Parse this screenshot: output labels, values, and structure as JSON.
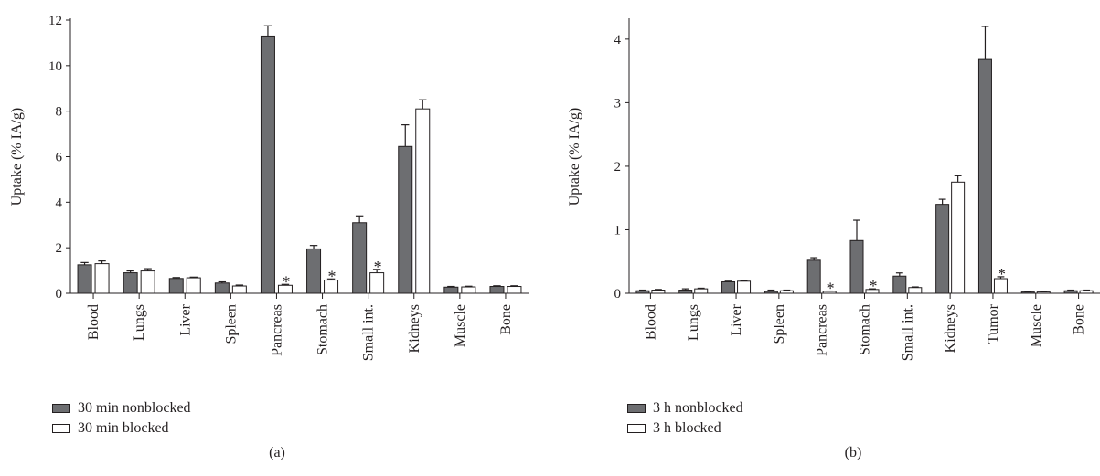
{
  "chart_data": [
    {
      "type": "bar",
      "panel_label": "(a)",
      "ylabel": "Uptake (% IA/g)",
      "ylim": [
        0,
        12
      ],
      "yticks": [
        0,
        2,
        4,
        6,
        8,
        10,
        12
      ],
      "categories": [
        "Blood",
        "Lungs",
        "Liver",
        "Spleen",
        "Pancreas",
        "Stomach",
        "Small int.",
        "Kidneys",
        "Muscle",
        "Bone"
      ],
      "series": [
        {
          "name": "30 min nonblocked",
          "color": "#6d6e71",
          "values": [
            1.25,
            0.9,
            0.65,
            0.45,
            11.3,
            1.95,
            3.1,
            6.45,
            0.27,
            0.3
          ],
          "errors": [
            0.1,
            0.08,
            0.04,
            0.05,
            0.45,
            0.15,
            0.3,
            0.95,
            0.03,
            0.03
          ]
        },
        {
          "name": "30 min blocked",
          "color": "#ffffff",
          "values": [
            1.3,
            0.98,
            0.68,
            0.32,
            0.35,
            0.58,
            0.9,
            8.1,
            0.28,
            0.3
          ],
          "errors": [
            0.12,
            0.1,
            0.03,
            0.04,
            0.04,
            0.05,
            0.15,
            0.4,
            0.03,
            0.03
          ]
        }
      ],
      "annotations": [
        {
          "category": "Pancreas",
          "series": 1,
          "text": "*"
        },
        {
          "category": "Stomach",
          "series": 1,
          "text": "*"
        },
        {
          "category": "Small int.",
          "series": 1,
          "text": "*"
        }
      ]
    },
    {
      "type": "bar",
      "panel_label": "(b)",
      "ylabel": "Uptake (% IA/g)",
      "ylim": [
        0,
        4.3
      ],
      "yticks": [
        0,
        1,
        2,
        3,
        4
      ],
      "categories": [
        "Blood",
        "Lungs",
        "Liver",
        "Spleen",
        "Pancreas",
        "Stomach",
        "Small int.",
        "Kidneys",
        "Tumor",
        "Muscle",
        "Bone"
      ],
      "series": [
        {
          "name": "3 h nonblocked",
          "color": "#6d6e71",
          "values": [
            0.04,
            0.05,
            0.18,
            0.03,
            0.52,
            0.83,
            0.27,
            1.4,
            3.68,
            0.02,
            0.04
          ],
          "errors": [
            0.01,
            0.02,
            0.01,
            0.02,
            0.04,
            0.32,
            0.05,
            0.08,
            0.52,
            0.005,
            0.01
          ]
        },
        {
          "name": "3 h blocked",
          "color": "#ffffff",
          "values": [
            0.05,
            0.07,
            0.19,
            0.04,
            0.03,
            0.06,
            0.09,
            1.75,
            0.23,
            0.02,
            0.04
          ],
          "errors": [
            0.01,
            0.01,
            0.01,
            0.01,
            0.005,
            0.01,
            0.01,
            0.1,
            0.03,
            0.005,
            0.01
          ]
        }
      ],
      "annotations": [
        {
          "category": "Pancreas",
          "series": 1,
          "text": "*"
        },
        {
          "category": "Stomach",
          "series": 1,
          "text": "*"
        },
        {
          "category": "Tumor",
          "series": 1,
          "text": "*"
        }
      ]
    }
  ]
}
